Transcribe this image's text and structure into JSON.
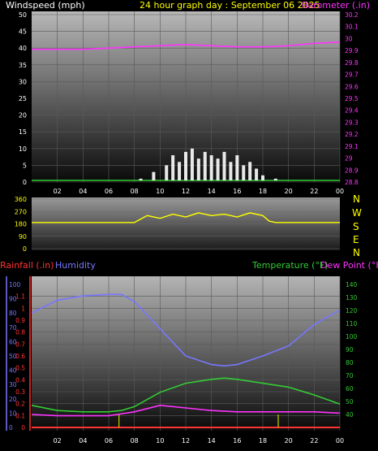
{
  "header": {
    "wind_label": "Windspeed (mph)",
    "title": "24 hour graph day : September 06 2025",
    "baro_label": "Barometer (.in)"
  },
  "colors": {
    "wind": "#ffffff",
    "barometer": "#ff33ff",
    "direction": "#ffff00",
    "humidity": "#7777ff",
    "temperature": "#33cc33",
    "dewpoint": "#ff33ff",
    "rainfall": "#ff3333",
    "title": "#ffff00"
  },
  "compass": [
    "N",
    "W",
    "S",
    "E",
    "N"
  ],
  "lower_labels": {
    "rainfall": "Rainfall (.in)",
    "humidity": "Humidity",
    "temperature": "Temperature (°F)",
    "dewpoint": "Dew Point (°F)"
  },
  "chart_data": [
    {
      "type": "area",
      "panel": "wind_barometer",
      "x_ticks": [
        "02",
        "04",
        "06",
        "08",
        "10",
        "12",
        "14",
        "16",
        "18",
        "20",
        "22",
        "00"
      ],
      "xlim_hours": [
        0,
        24
      ],
      "y_left": {
        "label": "Windspeed (mph)",
        "ylim": [
          0,
          50
        ],
        "ticks": [
          0,
          5,
          10,
          15,
          20,
          25,
          30,
          35,
          40,
          45,
          50
        ]
      },
      "y_right": {
        "label": "Barometer (.in)",
        "ylim": [
          28.8,
          30.2
        ],
        "ticks": [
          "28.8",
          "28.9",
          "29",
          "29.1",
          "29.2",
          "29.3",
          "29.4",
          "29.5",
          "29.6",
          "29.7",
          "29.8",
          "29.9",
          "30",
          "30.1",
          "30.2"
        ]
      },
      "series": [
        {
          "name": "Windspeed",
          "axis": "left",
          "x_hours": [
            8.5,
            9.5,
            10.5,
            11,
            11.5,
            12,
            12.5,
            13,
            13.5,
            14,
            14.5,
            15,
            15.5,
            16,
            16.5,
            17,
            17.5,
            18,
            19
          ],
          "values": [
            1,
            3,
            5,
            8,
            6,
            9,
            10,
            7,
            9,
            8,
            7,
            9,
            6,
            8,
            5,
            6,
            4,
            2,
            1
          ]
        },
        {
          "name": "Barometer",
          "axis": "right",
          "x_hours": [
            0,
            2,
            4,
            6,
            8,
            10,
            12,
            14,
            16,
            18,
            20,
            22,
            24
          ],
          "values": [
            29.91,
            29.91,
            29.91,
            29.92,
            29.93,
            29.94,
            29.95,
            29.94,
            29.93,
            29.93,
            29.94,
            29.96,
            29.97
          ]
        }
      ],
      "grid": true
    },
    {
      "type": "line",
      "panel": "wind_direction",
      "y_ticks": [
        0,
        90,
        180,
        270,
        360
      ],
      "ylim": [
        0,
        360
      ],
      "series": [
        {
          "name": "Wind direction",
          "x_hours": [
            0,
            7.5,
            8,
            9,
            10,
            11,
            12,
            13,
            14,
            15,
            16,
            17,
            18,
            18.5,
            19,
            24
          ],
          "values": [
            190,
            190,
            190,
            240,
            220,
            250,
            230,
            260,
            240,
            250,
            230,
            260,
            240,
            200,
            190,
            190
          ]
        }
      ]
    },
    {
      "type": "line",
      "panel": "temp_humidity_rain",
      "x_ticks": [
        "02",
        "04",
        "06",
        "08",
        "10",
        "12",
        "14",
        "16",
        "18",
        "20",
        "22",
        "00"
      ],
      "xlim_hours": [
        0,
        24
      ],
      "y_left_rain": {
        "label": "Rainfall (.in)",
        "ylim": [
          0,
          1.2
        ],
        "ticks": [
          "0",
          "0.1",
          "0.2",
          "0.3",
          "0.4",
          "0.5",
          "0.6",
          "0.7",
          "0.8",
          "0.9",
          "1",
          "1.1"
        ]
      },
      "y_left_humidity": {
        "label": "Humidity",
        "ylim": [
          0,
          100
        ],
        "ticks": [
          "0",
          "10",
          "20",
          "30",
          "40",
          "50",
          "60",
          "70",
          "80",
          "90",
          "100"
        ]
      },
      "y_right": {
        "label": "Temperature (°F)",
        "ylim": [
          30,
          145
        ],
        "ticks": [
          "40",
          "50",
          "60",
          "70",
          "80",
          "90",
          "100",
          "110",
          "120",
          "130",
          "140"
        ]
      },
      "series": [
        {
          "name": "Humidity",
          "axis": "humidity",
          "x_hours": [
            0,
            2,
            4,
            6,
            7,
            8,
            10,
            12,
            14,
            15,
            16,
            18,
            20,
            22,
            24
          ],
          "values": [
            80,
            89,
            92,
            93,
            93,
            88,
            69,
            50,
            44,
            43,
            44,
            50,
            57,
            72,
            82
          ]
        },
        {
          "name": "Temperature",
          "axis": "temp",
          "x_hours": [
            0,
            2,
            4,
            6,
            7,
            8,
            10,
            12,
            14,
            15,
            16,
            18,
            20,
            22,
            24
          ],
          "values": [
            47,
            43,
            42,
            42,
            43,
            46,
            57,
            64,
            67,
            68,
            67,
            64,
            61,
            55,
            48
          ]
        },
        {
          "name": "Dew Point",
          "axis": "temp",
          "x_hours": [
            0,
            2,
            4,
            6,
            8,
            10,
            12,
            14,
            16,
            18,
            20,
            22,
            24
          ],
          "values": [
            40,
            39,
            39,
            39,
            42,
            47,
            45,
            43,
            42,
            42,
            42,
            42,
            41
          ]
        },
        {
          "name": "Rainfall",
          "axis": "rain",
          "x_hours": [
            0,
            24
          ],
          "values": [
            0,
            0
          ]
        }
      ],
      "grid": true
    }
  ]
}
